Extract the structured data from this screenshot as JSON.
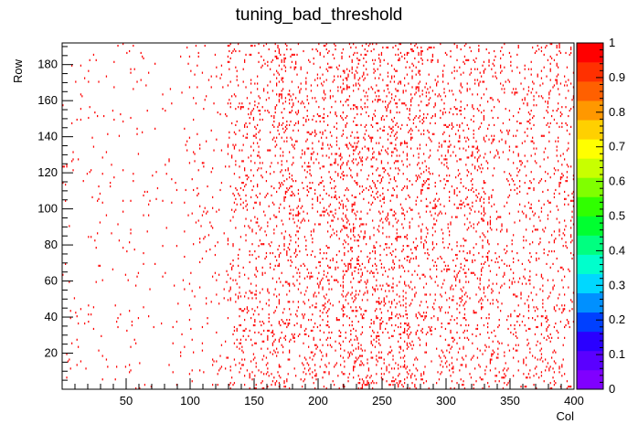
{
  "chart_data": {
    "type": "heatmap",
    "title": "tuning_bad_threshold",
    "xlabel": "Col",
    "ylabel": "Row",
    "xlim": [
      1,
      400
    ],
    "ylim": [
      1,
      192
    ],
    "zlim": [
      0,
      1
    ],
    "x_ticks": [
      "50",
      "100",
      "150",
      "200",
      "250",
      "300",
      "350",
      "400"
    ],
    "y_ticks": [
      "20",
      "40",
      "60",
      "80",
      "100",
      "120",
      "140",
      "160",
      "180"
    ],
    "z_ticks": [
      "0",
      "0.1",
      "0.2",
      "0.3",
      "0.4",
      "0.5",
      "0.6",
      "0.7",
      "0.8",
      "0.9",
      "1"
    ],
    "colorbar_colors": [
      "#8000ff",
      "#5a00ff",
      "#2a00ff",
      "#0040ff",
      "#0090ff",
      "#00d8ff",
      "#00ffcc",
      "#00ff80",
      "#00ff30",
      "#30ff00",
      "#80ff00",
      "#c8ff00",
      "#ffff00",
      "#ffd000",
      "#ff9800",
      "#ff6000",
      "#ff3000",
      "#ff0000"
    ],
    "cell_color": "#ff0000",
    "cell_value": 1,
    "density_profile": [
      {
        "col_from": 1,
        "col_to": 100,
        "fraction": 0.012
      },
      {
        "col_from": 100,
        "col_to": 130,
        "fraction": 0.02
      },
      {
        "col_from": 130,
        "col_to": 170,
        "fraction": 0.07
      },
      {
        "col_from": 170,
        "col_to": 220,
        "fraction": 0.085
      },
      {
        "col_from": 220,
        "col_to": 270,
        "fraction": 0.11
      },
      {
        "col_from": 270,
        "col_to": 330,
        "fraction": 0.08
      },
      {
        "col_from": 330,
        "col_to": 400,
        "fraction": 0.06
      }
    ]
  }
}
